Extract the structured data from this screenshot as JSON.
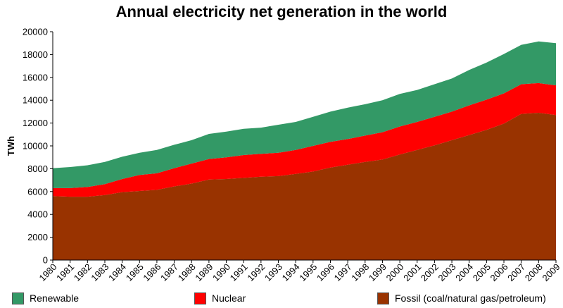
{
  "chart_data": {
    "type": "area",
    "stacked": true,
    "title": "Annual electricity net generation in the world",
    "xlabel": "",
    "ylabel": "TWh",
    "ylim": [
      0,
      20000
    ],
    "yticks": [
      0,
      2000,
      4000,
      6000,
      8000,
      10000,
      12000,
      14000,
      16000,
      18000,
      20000
    ],
    "categories": [
      "1980",
      "1981",
      "1982",
      "1983",
      "1984",
      "1985",
      "1986",
      "1987",
      "1988",
      "1989",
      "1990",
      "1991",
      "1992",
      "1993",
      "1994",
      "1995",
      "1996",
      "1997",
      "1998",
      "1999",
      "2000",
      "2001",
      "2002",
      "2003",
      "2004",
      "2005",
      "2006",
      "2007",
      "2008",
      "2009"
    ],
    "series": [
      {
        "name": "Fossil (coal/natural gas/petroleum)",
        "color": "#993300",
        "values": [
          5600,
          5550,
          5550,
          5700,
          5950,
          6050,
          6150,
          6450,
          6700,
          7050,
          7100,
          7200,
          7300,
          7350,
          7550,
          7750,
          8100,
          8350,
          8600,
          8800,
          9250,
          9650,
          10050,
          10500,
          10950,
          11400,
          11950,
          12800,
          12900,
          12700
        ]
      },
      {
        "name": "Nuclear",
        "color": "#ff0000",
        "values": [
          700,
          750,
          850,
          950,
          1150,
          1400,
          1450,
          1600,
          1750,
          1800,
          1900,
          2000,
          2000,
          2050,
          2100,
          2250,
          2250,
          2250,
          2300,
          2400,
          2450,
          2450,
          2500,
          2500,
          2600,
          2650,
          2650,
          2600,
          2600,
          2600
        ]
      },
      {
        "name": "Renewable",
        "color": "#339966",
        "values": [
          1750,
          1850,
          1900,
          1950,
          1950,
          1950,
          2050,
          2050,
          2050,
          2200,
          2250,
          2300,
          2300,
          2450,
          2450,
          2550,
          2650,
          2750,
          2750,
          2800,
          2850,
          2800,
          2850,
          2900,
          3100,
          3250,
          3450,
          3450,
          3650,
          3700
        ]
      }
    ],
    "legend": {
      "placement": "bottom",
      "entries": [
        {
          "label": "Renewable",
          "color": "#339966"
        },
        {
          "label": "Nuclear",
          "color": "#ff0000"
        },
        {
          "label": "Fossil (coal/natural gas/petroleum)",
          "color": "#993300"
        }
      ]
    },
    "grid": false
  }
}
